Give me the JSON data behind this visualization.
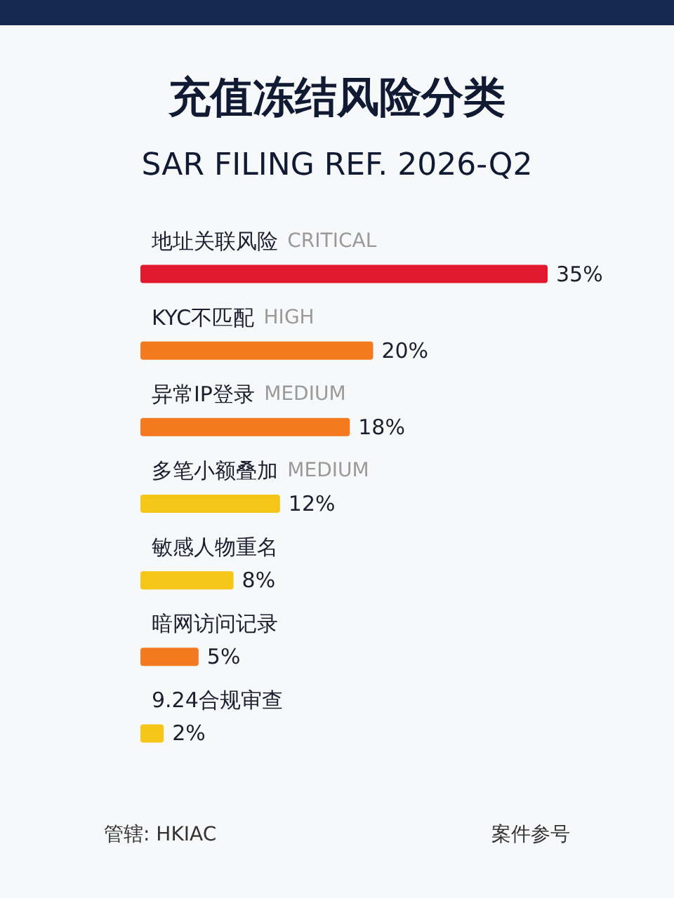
{
  "chart_data": {
    "type": "bar",
    "orientation": "horizontal",
    "title": "充值冻结风险分类",
    "subtitle": "SAR FILING REF. 2026-Q2",
    "categories": [
      "地址关联风险",
      "KYC不匹配",
      "异常IP登录",
      "多笔小额叠加",
      "敏感人物重名",
      "暗网访问记录",
      "9.24合规审查"
    ],
    "values": [
      35,
      20,
      18,
      12,
      8,
      5,
      2
    ],
    "colors": [
      "#e0192f",
      "#f47a20",
      "#f47a20",
      "#f5c518",
      "#f5c518",
      "#f47a20",
      "#f5c518"
    ],
    "value_labels": [
      "35%",
      "20%",
      "18%",
      "12%",
      "8%",
      "5%",
      "2%"
    ],
    "tick_labels": "y",
    "annotations": [
      "CRITICAL",
      "HIGH",
      "MEDIUM",
      "MEDIUM",
      "管辖: HKIAC",
      "案件参号"
    ],
    "grid": false
  }
}
